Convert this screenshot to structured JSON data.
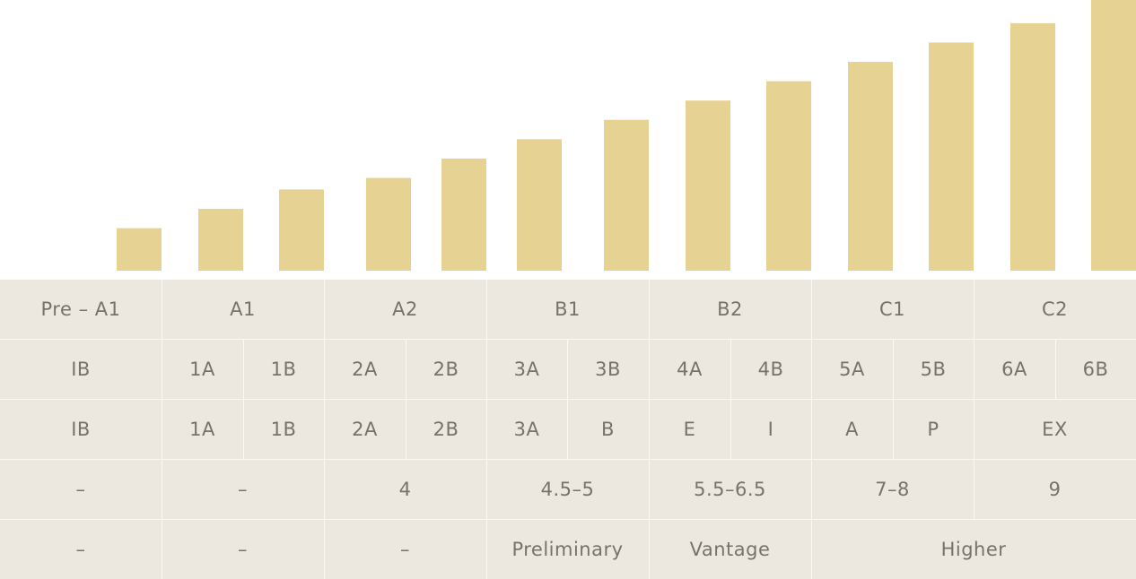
{
  "chart_data": {
    "type": "bar",
    "title": "",
    "xlabel": "",
    "ylabel": "",
    "bar_color": "#e6d394",
    "ylim": [
      0,
      14
    ],
    "categories": [
      "IB",
      "1A",
      "1B",
      "2A",
      "2B",
      "3A",
      "3B",
      "4A",
      "4B",
      "5A",
      "5B",
      "6A",
      "6B"
    ],
    "values": [
      2.2,
      3.2,
      4.2,
      4.8,
      5.8,
      6.8,
      7.8,
      8.8,
      9.8,
      10.8,
      11.8,
      12.8,
      14
    ]
  },
  "table": {
    "background": "#ece8df",
    "text_color": "#77736b",
    "rows": [
      [
        {
          "text": "Pre – A1",
          "span": 1
        },
        {
          "text": "A1",
          "span": 2
        },
        {
          "text": "A2",
          "span": 2
        },
        {
          "text": "B1",
          "span": 2
        },
        {
          "text": "B2",
          "span": 2
        },
        {
          "text": "C1",
          "span": 2
        },
        {
          "text": "C2",
          "span": 2
        }
      ],
      [
        {
          "text": "IB",
          "span": 1
        },
        {
          "text": "1A",
          "span": 1
        },
        {
          "text": "1B",
          "span": 1
        },
        {
          "text": "2A",
          "span": 1
        },
        {
          "text": "2B",
          "span": 1
        },
        {
          "text": "3A",
          "span": 1
        },
        {
          "text": "3B",
          "span": 1
        },
        {
          "text": "4A",
          "span": 1
        },
        {
          "text": "4B",
          "span": 1
        },
        {
          "text": "5A",
          "span": 1
        },
        {
          "text": "5B",
          "span": 1
        },
        {
          "text": "6A",
          "span": 1
        },
        {
          "text": "6B",
          "span": 1
        }
      ],
      [
        {
          "text": "IB",
          "span": 1
        },
        {
          "text": "1A",
          "span": 1
        },
        {
          "text": "1B",
          "span": 1
        },
        {
          "text": "2A",
          "span": 1
        },
        {
          "text": "2B",
          "span": 1
        },
        {
          "text": "3A",
          "span": 1
        },
        {
          "text": "B",
          "span": 1
        },
        {
          "text": "E",
          "span": 1
        },
        {
          "text": "I",
          "span": 1
        },
        {
          "text": "A",
          "span": 1
        },
        {
          "text": "P",
          "span": 1
        },
        {
          "text": "EX",
          "span": 2
        }
      ],
      [
        {
          "text": "–",
          "span": 1
        },
        {
          "text": "–",
          "span": 2
        },
        {
          "text": "4",
          "span": 2
        },
        {
          "text": "4.5–5",
          "span": 2
        },
        {
          "text": "5.5–6.5",
          "span": 2
        },
        {
          "text": "7–8",
          "span": 2
        },
        {
          "text": "9",
          "span": 2
        }
      ],
      [
        {
          "text": "–",
          "span": 1
        },
        {
          "text": "–",
          "span": 2
        },
        {
          "text": "–",
          "span": 2
        },
        {
          "text": "Preliminary",
          "span": 2
        },
        {
          "text": "Vantage",
          "span": 2
        },
        {
          "text": "Higher",
          "span": 4
        }
      ]
    ]
  }
}
